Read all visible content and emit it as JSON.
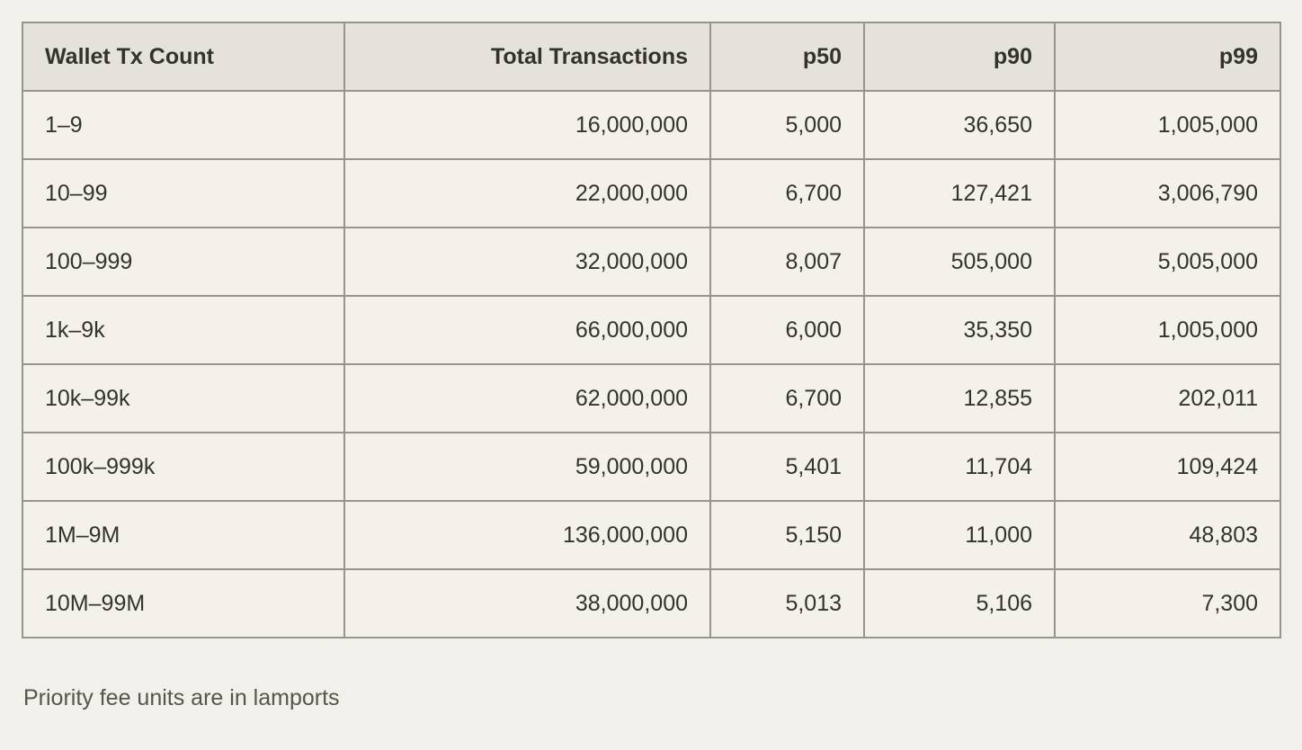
{
  "chart_data": {
    "type": "table",
    "columns": [
      {
        "label": "Wallet Tx Count",
        "align": "left"
      },
      {
        "label": "Total Transactions",
        "align": "right"
      },
      {
        "label": "p50",
        "align": "right"
      },
      {
        "label": "p90",
        "align": "right"
      },
      {
        "label": "p99",
        "align": "right"
      }
    ],
    "rows": [
      [
        "1–9",
        "16,000,000",
        "5,000",
        "36,650",
        "1,005,000"
      ],
      [
        "10–99",
        "22,000,000",
        "6,700",
        "127,421",
        "3,006,790"
      ],
      [
        "100–999",
        "32,000,000",
        "8,007",
        "505,000",
        "5,005,000"
      ],
      [
        "1k–9k",
        "66,000,000",
        "6,000",
        "35,350",
        "1,005,000"
      ],
      [
        "10k–99k",
        "62,000,000",
        "6,700",
        "12,855",
        "202,011"
      ],
      [
        "100k–999k",
        "59,000,000",
        "5,401",
        "11,704",
        "109,424"
      ],
      [
        "1M–9M",
        "136,000,000",
        "5,150",
        "11,000",
        "48,803"
      ],
      [
        "10M–99M",
        "38,000,000",
        "5,013",
        "5,106",
        "7,300"
      ]
    ],
    "note": "Priority fee units are in lamports"
  },
  "footnote": "Priority fee units are in lamports",
  "colors": {
    "page_bg": "#f2f0ea",
    "header_bg": "#e5e2db",
    "cell_bg": "#f3f1ea",
    "border": "#98948a",
    "text": "#34322d",
    "footnote_text": "#56544d"
  }
}
